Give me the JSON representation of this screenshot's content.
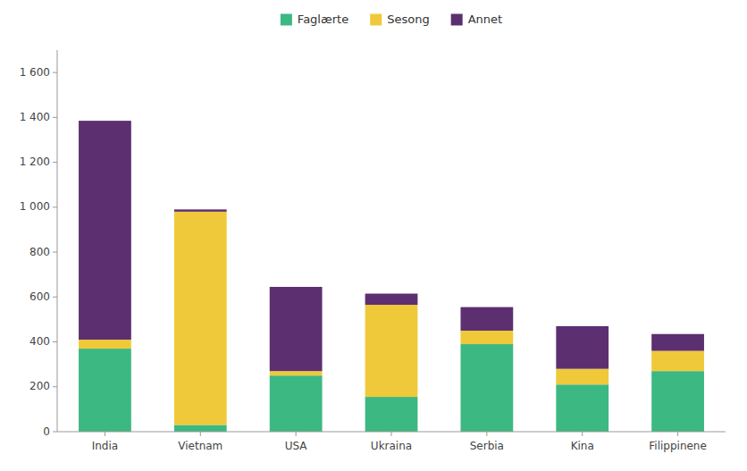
{
  "chart_data": {
    "type": "bar",
    "stacked": true,
    "categories": [
      "India",
      "Vietnam",
      "USA",
      "Ukraina",
      "Serbia",
      "Kina",
      "Filippinene"
    ],
    "series": [
      {
        "name": "Faglærte",
        "color": "#3cb882",
        "values": [
          370,
          30,
          250,
          155,
          390,
          210,
          270
        ]
      },
      {
        "name": "Sesong",
        "color": "#f0c93a",
        "values": [
          40,
          950,
          20,
          410,
          60,
          70,
          90
        ]
      },
      {
        "name": "Annet",
        "color": "#5c3070",
        "values": [
          975,
          10,
          375,
          50,
          105,
          190,
          75
        ]
      }
    ],
    "ylim": [
      0,
      1700
    ],
    "yticks": [
      0,
      200,
      400,
      600,
      800,
      {
        "value": 1000,
        "label": "1 000"
      },
      {
        "value": 1200,
        "label": "1 200"
      },
      {
        "value": 1400,
        "label": "1 400"
      },
      {
        "value": 1600,
        "label": "1 600"
      }
    ],
    "grid": false,
    "legend": "top"
  }
}
